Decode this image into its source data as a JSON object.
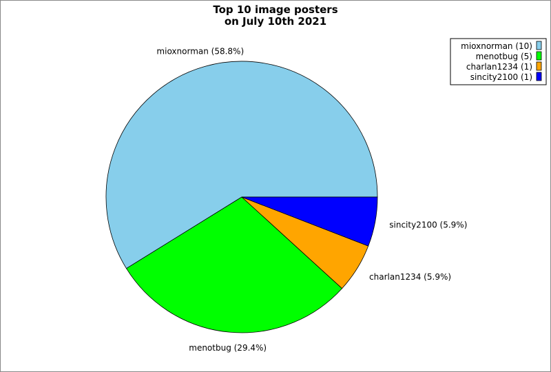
{
  "chart_data": {
    "type": "pie",
    "title": "Top 10 image posters\non July 10th 2021",
    "title_lines": [
      "Top 10 image posters",
      "on July 10th 2021"
    ],
    "slices": [
      {
        "name": "mioxnorman",
        "value": 10,
        "percent_label": "mioxnorman (58.8%)",
        "legend_label": "mioxnorman (10)",
        "color": "#87CEEB"
      },
      {
        "name": "menotbug",
        "value": 5,
        "percent_label": "menotbug (29.4%)",
        "legend_label": "menotbug (5)",
        "color": "#00FF00"
      },
      {
        "name": "charlan1234",
        "value": 1,
        "percent_label": "charlan1234 (5.9%)",
        "legend_label": "charlan1234 (1)",
        "color": "#FFA500"
      },
      {
        "name": "sincity2100",
        "value": 1,
        "percent_label": "sincity2100 (5.9%)",
        "legend_label": "sincity2100 (1)",
        "color": "#0000FF"
      }
    ],
    "start_angle_deg": 0,
    "direction": "counterclockwise",
    "legend_position": "top-right"
  }
}
